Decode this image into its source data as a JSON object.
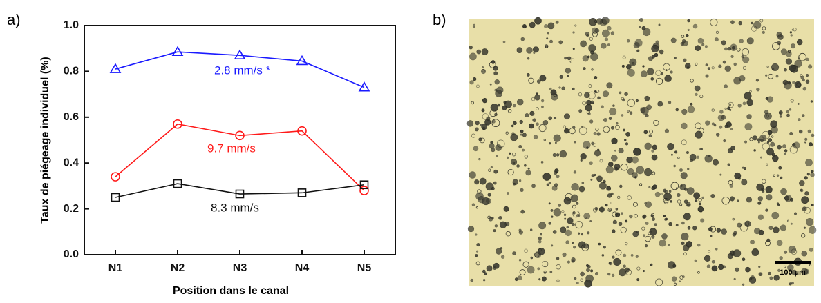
{
  "panels": {
    "a": "a)",
    "b": "b)"
  },
  "chart_data": {
    "type": "line",
    "xlabel": "Position dans le canal",
    "ylabel": "Taux de piégeage individuel (%)",
    "categories": [
      "N1",
      "N2",
      "N3",
      "N4",
      "N5"
    ],
    "series": [
      {
        "name": "2.8 mm/s *",
        "color": "#1a1aff",
        "marker": "triangle",
        "values": [
          0.81,
          0.885,
          0.87,
          0.845,
          0.73
        ]
      },
      {
        "name": "9.7 mm/s",
        "color": "#ff1a1a",
        "marker": "circle",
        "values": [
          0.34,
          0.57,
          0.52,
          0.54,
          0.28
        ]
      },
      {
        "name": "8.3 mm/s",
        "color": "#111111",
        "marker": "square",
        "values": [
          0.25,
          0.31,
          0.265,
          0.27,
          0.305
        ]
      }
    ],
    "ylim": [
      0,
      1
    ],
    "yticks": [
      {
        "value": 0,
        "label": "0.0"
      },
      0.2,
      0.4,
      0.6,
      0.8,
      {
        "value": 1,
        "label": "1.0"
      }
    ]
  },
  "image": {
    "scale_bar_label": "100 µm"
  }
}
